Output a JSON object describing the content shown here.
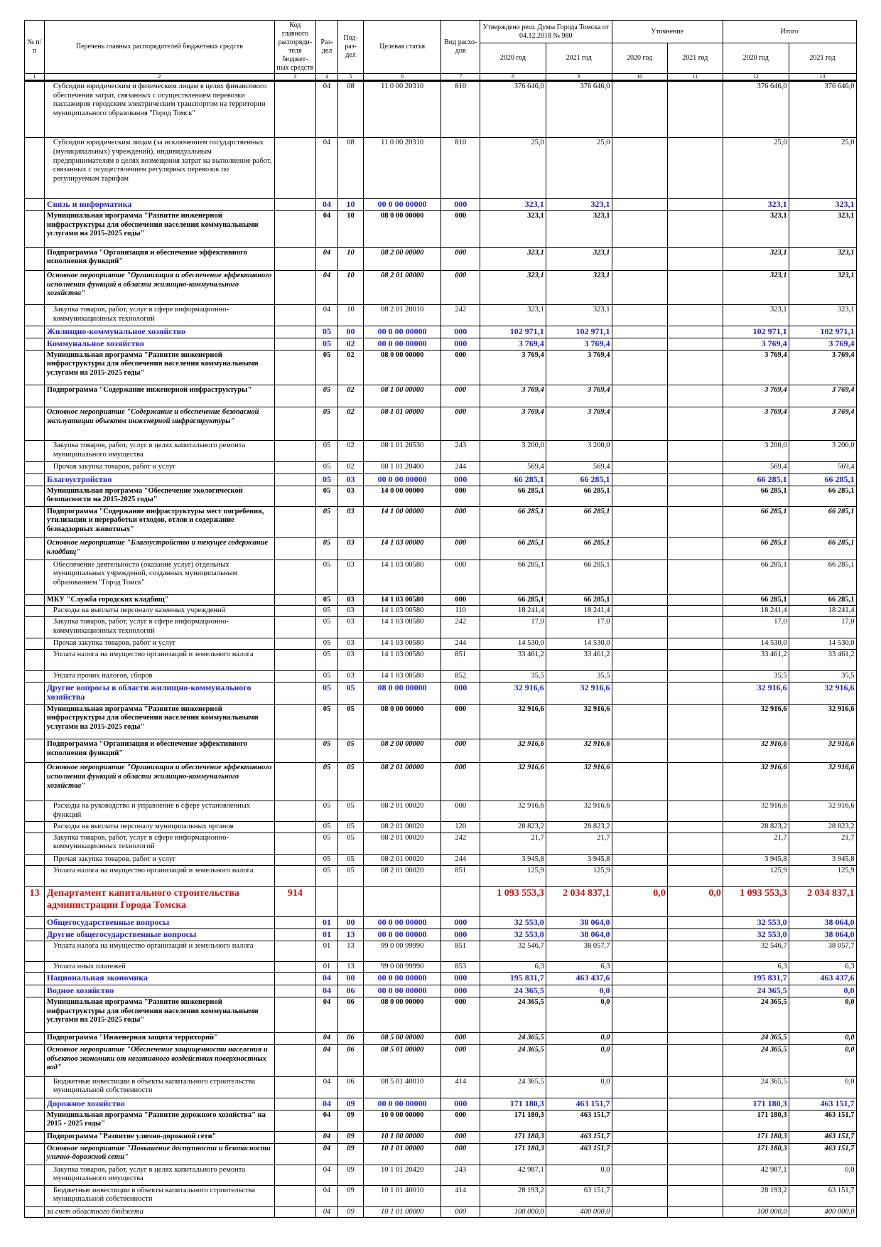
{
  "header": {
    "num": "№ п/п",
    "name": "Перечень главных распорядителей бюджетных средств",
    "code": "Код главного распоряди-теля бюджет-ных средств",
    "rz": "Раз-дел",
    "pr": "Под-раз-дел",
    "cs": "Целевая статья",
    "vr": "Вид расхо-дов",
    "approved": "Утверждено реш. Думы Города Томска от 04.12.2018 № 980",
    "clarify": "Уточнение",
    "total": "Итого",
    "years": [
      "2020 год",
      "2021 год",
      "2020 год",
      "2021 год",
      "2020 год",
      "2021 год"
    ],
    "numbers": [
      "1",
      "2",
      "3",
      "4",
      "5",
      "6",
      "7",
      "8",
      "9",
      "10",
      "11",
      "12",
      "13"
    ]
  },
  "table": {
    "rows": [
      {
        "style": "normal",
        "name": "Субсидии юридическим и физическим лицам в целях финансового обеспечения затрат, связанных с осуществлением перевозки пассажиров городским электрическим транспортом на территории муниципального образования \"Город Томск\"",
        "rz": "04",
        "pr": "08",
        "cs": "11 0 00 20310",
        "vr": "810",
        "y20": "376 646,0",
        "y21": "376 646,0",
        "t20": "376 646,0",
        "t21": "376 646,0"
      },
      {
        "style": "normal",
        "name": "Субсидии юридическим лицам (за исключением государственных (муниципальных) учреждений), индивидуальным предпринимателям в целях возмещения затрат на выполнение работ, связанных с осуществлением регулярных перевозок по регулируемым тарифам",
        "rz": "04",
        "pr": "08",
        "cs": "11 0 00 20310",
        "vr": "810",
        "y20": "25,0",
        "y21": "25,0",
        "t20": "25,0",
        "t21": "25,0"
      },
      {
        "style": "blue",
        "name": "Связь и информатика",
        "rz": "04",
        "pr": "10",
        "cs": "00 0 00 00000",
        "vr": "000",
        "y20": "323,1",
        "y21": "323,1",
        "t20": "323,1",
        "t21": "323,1"
      },
      {
        "style": "bold",
        "name": "Муниципальная программа \"Развитие инженерной инфраструктуры для обеспечения населения коммунальными услугами на 2015-2025 годы\"",
        "rz": "04",
        "pr": "10",
        "cs": "08 0 00 00000",
        "vr": "000",
        "y20": "323,1",
        "y21": "323,1",
        "t20": "323,1",
        "t21": "323,1"
      },
      {
        "style": "sub",
        "name": "Подпрограмма \"Организация и обеспечение эффективного исполнения функций\"",
        "rz": "04",
        "pr": "10",
        "cs": "08 2 00 00000",
        "vr": "000",
        "y20": "323,1",
        "y21": "323,1",
        "t20": "323,1",
        "t21": "323,1"
      },
      {
        "style": "event",
        "name": "Основное мероприятие \"Организация и обеспечение эффективного исполнения функций в области жилищно-коммунального хозяйства\"",
        "rz": "04",
        "pr": "10",
        "cs": "08 2 01 00000",
        "vr": "000",
        "y20": "323,1",
        "y21": "323,1",
        "t20": "323,1",
        "t21": "323,1"
      },
      {
        "style": "normal",
        "name": "Закупка товаров, работ, услуг в сфере информационно-коммуникационных технологий",
        "rz": "04",
        "pr": "10",
        "cs": "08 2 01 20010",
        "vr": "242",
        "y20": "323,1",
        "y21": "323,1",
        "t20": "323,1",
        "t21": "323,1"
      },
      {
        "style": "blue",
        "name": "Жилищно-коммунальное хозяйство",
        "rz": "05",
        "pr": "00",
        "cs": "00 0 00 00000",
        "vr": "000",
        "y20": "102 971,1",
        "y21": "102 971,1",
        "t20": "102 971,1",
        "t21": "102 971,1"
      },
      {
        "style": "blue",
        "name": "Коммунальное хозяйство",
        "rz": "05",
        "pr": "02",
        "cs": "00 0 00 00000",
        "vr": "000",
        "y20": "3 769,4",
        "y21": "3 769,4",
        "t20": "3 769,4",
        "t21": "3 769,4"
      },
      {
        "style": "bold",
        "name": "Муниципальная программа \"Развитие инженерной инфраструктуры для обеспечения населения коммунальными услугами на 2015-2025 годы\"",
        "rz": "05",
        "pr": "02",
        "cs": "08 0 00 00000",
        "vr": "000",
        "y20": "3 769,4",
        "y21": "3 769,4",
        "t20": "3 769,4",
        "t21": "3 769,4"
      },
      {
        "style": "sub",
        "name": "Подпрограмма \"Содержание инженерной инфраструктуры\"",
        "rz": "05",
        "pr": "02",
        "cs": "08 1 00 00000",
        "vr": "000",
        "y20": "3 769,4",
        "y21": "3 769,4",
        "t20": "3 769,4",
        "t21": "3 769,4"
      },
      {
        "style": "event",
        "name": "Основное мероприятие \"Содержание и обеспечение безопасной эксплуатации объектов инженерной инфраструктуры\"",
        "rz": "05",
        "pr": "02",
        "cs": "08 1 01 00000",
        "vr": "000",
        "y20": "3 769,4",
        "y21": "3 769,4",
        "t20": "3 769,4",
        "t21": "3 769,4"
      },
      {
        "style": "normal",
        "name": "Закупка товаров, работ, услуг в целях капитального ремонта муниципального имущества",
        "rz": "05",
        "pr": "02",
        "cs": "08 1 01 20530",
        "vr": "243",
        "y20": "3 200,0",
        "y21": "3 200,0",
        "t20": "3 200,0",
        "t21": "3 200,0"
      },
      {
        "style": "normal",
        "name": "Прочая закупка товаров, работ и услуг",
        "rz": "05",
        "pr": "02",
        "cs": "08 1 01 20400",
        "vr": "244",
        "y20": "569,4",
        "y21": "569,4",
        "t20": "569,4",
        "t21": "569,4"
      },
      {
        "style": "blue",
        "name": "Благоустройство",
        "rz": "05",
        "pr": "03",
        "cs": "00 0 00 00000",
        "vr": "000",
        "y20": "66 285,1",
        "y21": "66 285,1",
        "t20": "66 285,1",
        "t21": "66 285,1"
      },
      {
        "style": "bold",
        "name": "Муниципальная программа \"Обеспечение экологической безопасности на 2015-2025 годы\"",
        "rz": "05",
        "pr": "03",
        "cs": "14 0 00 00000",
        "vr": "000",
        "y20": "66 285,1",
        "y21": "66 285,1",
        "t20": "66 285,1",
        "t21": "66 285,1"
      },
      {
        "style": "sub",
        "name": "Подпрограмма \"Содержание инфраструктуры мест погребения, утилизации и переработки отходов, отлов и содержание безнадзорных животных\"",
        "rz": "05",
        "pr": "03",
        "cs": "14 1 00 00000",
        "vr": "000",
        "y20": "66 285,1",
        "y21": "66 285,1",
        "t20": "66 285,1",
        "t21": "66 285,1"
      },
      {
        "style": "event",
        "name": "Основное мероприятие \"Благоустройство и текущее содержание кладбищ\"",
        "rz": "05",
        "pr": "03",
        "cs": "14 1 03 00000",
        "vr": "000",
        "y20": "66 285,1",
        "y21": "66 285,1",
        "t20": "66 285,1",
        "t21": "66 285,1"
      },
      {
        "style": "normal",
        "name": "Обеспечение деятельности (оказание услуг) отдельных муниципальных учреждений, созданных муниципальным образованием \"Город Томск\"",
        "rz": "05",
        "pr": "03",
        "cs": "14 1 03 00580",
        "vr": "000",
        "y20": "66 285,1",
        "y21": "66 285,1",
        "t20": "66 285,1",
        "t21": "66 285,1"
      },
      {
        "style": "bold",
        "name": "МКУ \"Служба городских кладбищ\"",
        "rz": "05",
        "pr": "03",
        "cs": "14 1 03 00580",
        "vr": "000",
        "y20": "66 285,1",
        "y21": "66 285,1",
        "t20": "66 285,1",
        "t21": "66 285,1"
      },
      {
        "style": "normal",
        "name": "Расходы на выплаты персоналу казенных учреждений",
        "rz": "05",
        "pr": "03",
        "cs": "14 1 03 00580",
        "vr": "110",
        "y20": "18 241,4",
        "y21": "18 241,4",
        "t20": "18 241,4",
        "t21": "18 241,4"
      },
      {
        "style": "normal",
        "name": "Закупка товаров, работ, услуг в сфере информационно-коммуникационных технологий",
        "rz": "05",
        "pr": "03",
        "cs": "14 1 03 00580",
        "vr": "242",
        "y20": "17,0",
        "y21": "17,0",
        "t20": "17,0",
        "t21": "17,0"
      },
      {
        "style": "normal",
        "name": "Прочая закупка товаров, работ и услуг",
        "rz": "05",
        "pr": "03",
        "cs": "14 1 03 00580",
        "vr": "244",
        "y20": "14 530,0",
        "y21": "14 530,0",
        "t20": "14 530,0",
        "t21": "14 530,0"
      },
      {
        "style": "normal",
        "name": "Уплата налога на имущество организаций и земельного налога",
        "rz": "05",
        "pr": "03",
        "cs": "14 1 03 00580",
        "vr": "851",
        "y20": "33 461,2",
        "y21": "33 461,2",
        "t20": "33 461,2",
        "t21": "33 461,2"
      },
      {
        "style": "normal",
        "name": "Уплата прочих налогов, сборов",
        "rz": "05",
        "pr": "03",
        "cs": "14 1 03 00580",
        "vr": "852",
        "y20": "35,5",
        "y21": "35,5",
        "t20": "35,5",
        "t21": "35,5"
      },
      {
        "style": "blue",
        "name": "Другие вопросы в области жилищно-коммунального хозяйства",
        "rz": "05",
        "pr": "05",
        "cs": "08 0 00 00000",
        "vr": "000",
        "y20": "32 916,6",
        "y21": "32 916,6",
        "t20": "32 916,6",
        "t21": "32 916,6"
      },
      {
        "style": "bold",
        "name": "Муниципальная программа \"Развитие инженерной инфраструктуры для обеспечения населения коммунальными услугами на 2015-2025 годы\"",
        "rz": "05",
        "pr": "05",
        "cs": "08 0 00 00000",
        "vr": "000",
        "y20": "32 916,6",
        "y21": "32 916,6",
        "t20": "32 916,6",
        "t21": "32 916,6"
      },
      {
        "style": "sub",
        "name": "Подпрограмма \"Организация и обеспечение эффективного исполнения функций\"",
        "rz": "05",
        "pr": "05",
        "cs": "08 2 00 00000",
        "vr": "000",
        "y20": "32 916,6",
        "y21": "32 916,6",
        "t20": "32 916,6",
        "t21": "32 916,6"
      },
      {
        "style": "event",
        "name": "Основное мероприятие \"Организация и обеспечение эффективного исполнения функций в области жилищно-коммунального хозяйства\"",
        "rz": "05",
        "pr": "05",
        "cs": "08 2 01 00000",
        "vr": "000",
        "y20": "32 916,6",
        "y21": "32 916,6",
        "t20": "32 916,6",
        "t21": "32 916,6"
      },
      {
        "style": "normal",
        "name": "Расходы на руководство и управление в сфере установленных функций",
        "rz": "05",
        "pr": "05",
        "cs": "08 2 01 00020",
        "vr": "000",
        "y20": "32 916,6",
        "y21": "32 916,6",
        "t20": "32 916,6",
        "t21": "32 916,6"
      },
      {
        "style": "normal",
        "name": "Расходы на выплаты персоналу муниципальных органов",
        "rz": "05",
        "pr": "05",
        "cs": "08 2 01 00020",
        "vr": "120",
        "y20": "28 823,2",
        "y21": "28 823,2",
        "t20": "28 823,2",
        "t21": "28 823,2"
      },
      {
        "style": "normal",
        "name": "Закупка товаров, работ, услуг в сфере информационно-коммуникационных технологий",
        "rz": "05",
        "pr": "05",
        "cs": "08 2 01 00020",
        "vr": "242",
        "y20": "21,7",
        "y21": "21,7",
        "t20": "21,7",
        "t21": "21,7"
      },
      {
        "style": "normal",
        "name": "Прочая закупка товаров, работ и услуг",
        "rz": "05",
        "pr": "05",
        "cs": "08 2 01 00020",
        "vr": "244",
        "y20": "3 945,8",
        "y21": "3 945,8",
        "t20": "3 945,8",
        "t21": "3 945,8"
      },
      {
        "style": "normal",
        "name": "Уплата налога на имущество организаций и земельного налога",
        "rz": "05",
        "pr": "05",
        "cs": "08 2 01 00020",
        "vr": "851",
        "y20": "125,9",
        "y21": "125,9",
        "t20": "125,9",
        "t21": "125,9"
      },
      {
        "style": "red",
        "n": "13",
        "name": "Департамент капитального строительства администрации Города Томска",
        "code": "914",
        "y20": "1 093 553,3",
        "y21": "2 034 837,1",
        "u20": "0,0",
        "u21": "0,0",
        "t20": "1 093 553,3",
        "t21": "2 034 837,1"
      },
      {
        "style": "blue",
        "name": "Общегосударственные вопросы",
        "rz": "01",
        "pr": "00",
        "cs": "00 0 00 00000",
        "vr": "000",
        "y20": "32 553,0",
        "y21": "38 064,0",
        "t20": "32 553,0",
        "t21": "38 064,0"
      },
      {
        "style": "blue",
        "name": "Другие общегосударственные вопросы",
        "rz": "01",
        "pr": "13",
        "cs": "00 0 00 00000",
        "vr": "000",
        "y20": "32 553,0",
        "y21": "38 064,0",
        "t20": "32 553,0",
        "t21": "38 064,0"
      },
      {
        "style": "normal",
        "name": "Уплата налога на имущество организаций и земельного налога",
        "rz": "01",
        "pr": "13",
        "cs": "99 0 00 99990",
        "vr": "851",
        "y20": "32 546,7",
        "y21": "38 057,7",
        "t20": "32 546,7",
        "t21": "38 057,7"
      },
      {
        "style": "normal",
        "name": "Уплата иных платежей",
        "rz": "01",
        "pr": "13",
        "cs": "99 0 00 99990",
        "vr": "853",
        "y20": "6,3",
        "y21": "6,3",
        "t20": "6,3",
        "t21": "6,3"
      },
      {
        "style": "blue",
        "name": "Национальная экономика",
        "rz": "04",
        "pr": "00",
        "cs": "00 0 00 00000",
        "vr": "000",
        "y20": "195 831,7",
        "y21": "463 437,6",
        "t20": "195 831,7",
        "t21": "463 437,6"
      },
      {
        "style": "blue",
        "name": "Водное хозяйство",
        "rz": "04",
        "pr": "06",
        "cs": "00 0 00 00000",
        "vr": "000",
        "y20": "24 365,5",
        "y21": "0,0",
        "t20": "24 365,5",
        "t21": "0,0"
      },
      {
        "style": "bold",
        "name": "Муниципальная программа \"Развитие инженерной инфраструктуры для обеспечения населения коммунальными услугами на 2015-2025 годы\"",
        "rz": "04",
        "pr": "06",
        "cs": "08 0 00 00000",
        "vr": "000",
        "y20": "24 365,5",
        "y21": "0,0",
        "t20": "24 365,5",
        "t21": "0,0"
      },
      {
        "style": "sub",
        "name": "Подпрограмма \"Инженерная защита территорий\"",
        "rz": "04",
        "pr": "06",
        "cs": "08 5 00 00000",
        "vr": "000",
        "y20": "24 365,5",
        "y21": "0,0",
        "t20": "24 365,5",
        "t21": "0,0"
      },
      {
        "style": "event",
        "name": "Основное мероприятие \"Обеспечение защищенности населения и объектов экономики от негативного воздействия поверхностных вод\"",
        "rz": "04",
        "pr": "06",
        "cs": "08 5 01 00000",
        "vr": "000",
        "y20": "24 365,5",
        "y21": "0,0",
        "t20": "24 365,5",
        "t21": "0,0"
      },
      {
        "style": "normal",
        "name": "Бюджетные инвестиции в объекты капитального строительства муниципальной собственности",
        "rz": "04",
        "pr": "06",
        "cs": "08 5 01 40010",
        "vr": "414",
        "y20": "24 365,5",
        "y21": "0,0",
        "t20": "24 365,5",
        "t21": "0,0"
      },
      {
        "style": "blue",
        "name": "Дорожное хозяйство",
        "rz": "04",
        "pr": "09",
        "cs": "00 0 00 00000",
        "vr": "000",
        "y20": "171 180,3",
        "y21": "463 151,7",
        "t20": "171 180,3",
        "t21": "463 151,7"
      },
      {
        "style": "bold",
        "name": "Муниципальная программа \"Развитие дорожного хозяйства\" на 2015 - 2025 годы\"",
        "rz": "04",
        "pr": "09",
        "cs": "10 0 00 00000",
        "vr": "000",
        "y20": "171 180,3",
        "y21": "463 151,7",
        "t20": "171 180,3",
        "t21": "463 151,7"
      },
      {
        "style": "sub",
        "name": "Подпрограмма \"Развитие улично-дорожной сети\"",
        "rz": "04",
        "pr": "09",
        "cs": "10 1 00 00000",
        "vr": "000",
        "y20": "171 180,3",
        "y21": "463 151,7",
        "t20": "171 180,3",
        "t21": "463 151,7"
      },
      {
        "style": "event",
        "name": "Основное мероприятие \"Повышение доступности и безопасности улично-дорожной сети\"",
        "rz": "04",
        "pr": "09",
        "cs": "10 1 01 00000",
        "vr": "000",
        "y20": "171 180,3",
        "y21": "463 151,7",
        "t20": "171 180,3",
        "t21": "463 151,7"
      },
      {
        "style": "normal",
        "name": "Закупка товаров, работ, услуг в целях капитального ремонта муниципального имущества",
        "rz": "04",
        "pr": "09",
        "cs": "10 1 01 20420",
        "vr": "243",
        "y20": "42 987,1",
        "y21": "0,0",
        "t20": "42 987,1",
        "t21": "0,0"
      },
      {
        "style": "normal",
        "name": "Бюджетные инвестиции в объекты капитального строительства муниципальной собственности",
        "rz": "04",
        "pr": "09",
        "cs": "10 1 01 40010",
        "vr": "414",
        "y20": "28 193,2",
        "y21": "63 151,7",
        "t20": "28 193,2",
        "t21": "63 151,7"
      },
      {
        "style": "italic",
        "name": "за счет областного бюджета",
        "rz": "04",
        "pr": "09",
        "cs": "10 1 01 00000",
        "vr": "000",
        "y20": "100 000,0",
        "y21": "400 000,0",
        "t20": "100 000,0",
        "t21": "400 000,0"
      }
    ]
  }
}
